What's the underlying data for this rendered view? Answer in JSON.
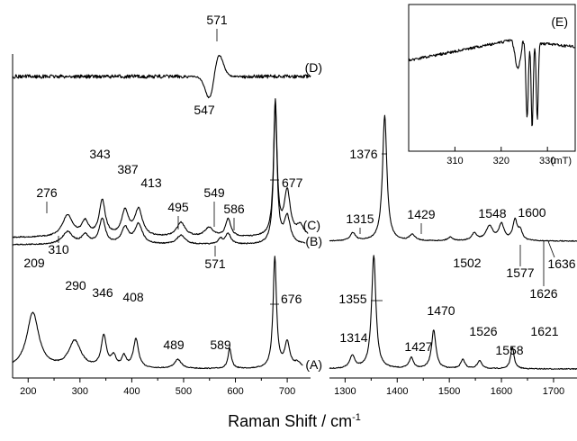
{
  "chart_data": {
    "type": "line",
    "xlabel": "Raman Shift / cm",
    "xlabel_sup": "-1",
    "x_panels": [
      {
        "xlim": [
          170,
          745
        ],
        "ticks": [
          200,
          300,
          400,
          500,
          600,
          700
        ]
      },
      {
        "xlim": [
          1270,
          1745
        ],
        "ticks": [
          1300,
          1400,
          1500,
          1600,
          1700
        ]
      }
    ],
    "series": [
      {
        "name": "(A)",
        "peaks_low": [
          209,
          290,
          346,
          408,
          489,
          589,
          676
        ],
        "peaks_high": [
          1314,
          1355,
          1427,
          1470,
          1526,
          1558,
          1621
        ]
      },
      {
        "name": "(B)",
        "peaks_low": [
          310,
          571
        ]
      },
      {
        "name": "(C)",
        "peaks_low": [
          276,
          343,
          387,
          413,
          495,
          549,
          586,
          677
        ],
        "peaks_high": [
          1315,
          1376,
          1429,
          1502,
          1548,
          1577,
          1600,
          1626,
          1636
        ]
      },
      {
        "name": "(D)",
        "peaks_low": [
          547,
          571
        ]
      }
    ],
    "inset": {
      "name": "(E)",
      "xlim": [
        300,
        336
      ],
      "ticks": [
        310,
        320,
        330
      ],
      "unit": "(mT)"
    }
  }
}
